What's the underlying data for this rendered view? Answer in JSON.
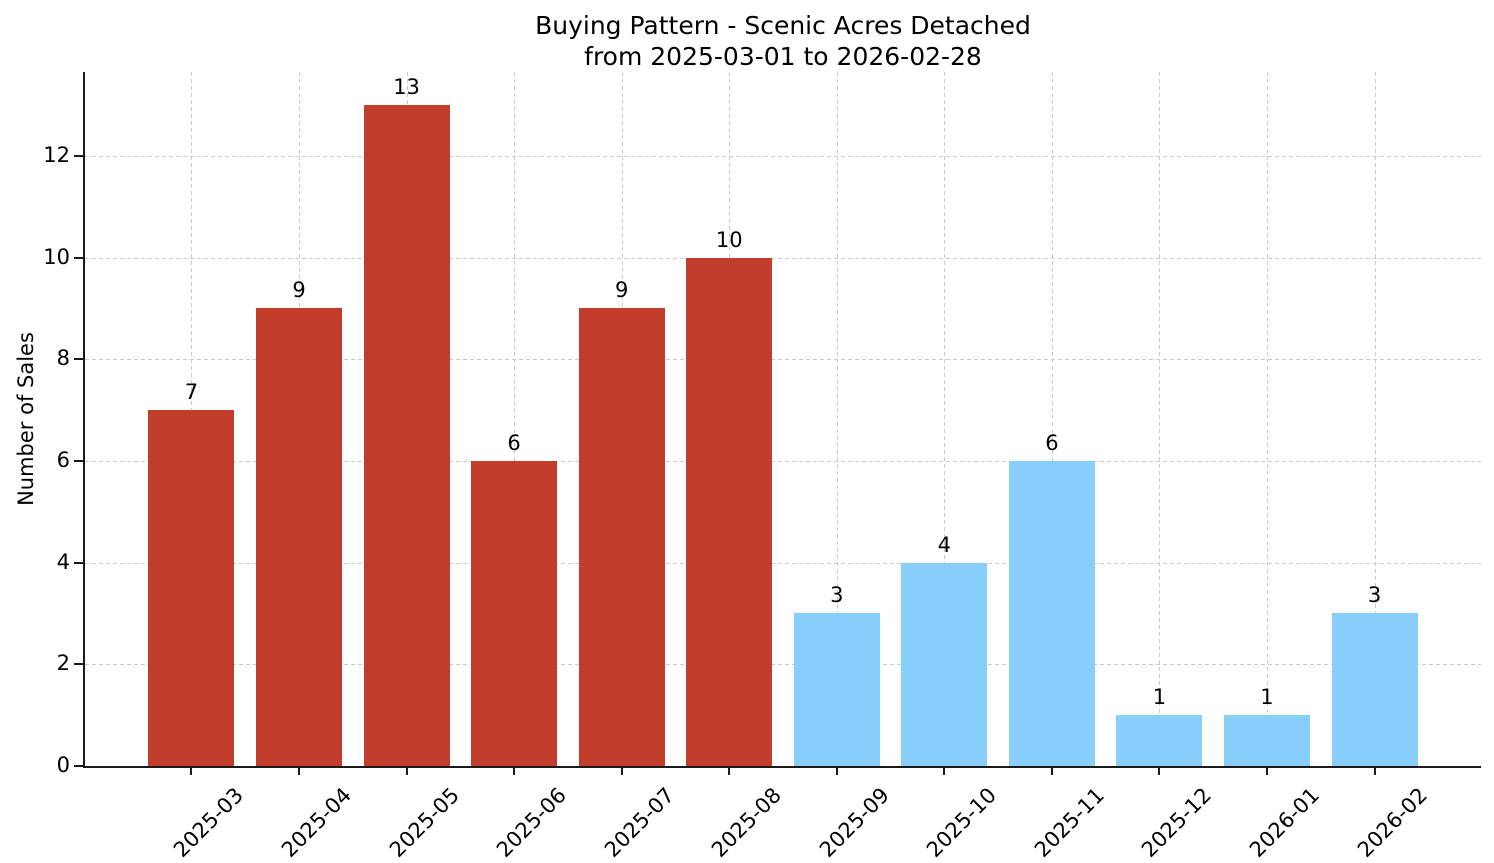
{
  "chart_data": {
    "type": "bar",
    "title": "Buying Pattern - Scenic Acres Detached",
    "subtitle": "from 2025-03-01 to 2026-02-28",
    "ylabel": "Number of Sales",
    "categories": [
      "2025-03",
      "2025-04",
      "2025-05",
      "2025-06",
      "2025-07",
      "2025-08",
      "2025-09",
      "2025-10",
      "2025-11",
      "2025-12",
      "2026-01",
      "2026-02"
    ],
    "values": [
      7,
      9,
      13,
      6,
      9,
      10,
      3,
      4,
      6,
      1,
      1,
      3
    ],
    "bar_colors": [
      "#c33d2b",
      "#c33d2b",
      "#c33d2b",
      "#c33d2b",
      "#c33d2b",
      "#c33d2b",
      "#87cefa",
      "#87cefa",
      "#87cefa",
      "#87cefa",
      "#87cefa",
      "#87cefa"
    ],
    "value_labels": [
      "7",
      "9",
      "13",
      "6",
      "9",
      "10",
      "3",
      "4",
      "6",
      "1",
      "1",
      "3"
    ],
    "yticks": [
      0,
      2,
      4,
      6,
      8,
      10,
      12
    ],
    "ylim": [
      0,
      13.65
    ],
    "grid": true,
    "grid_style": "dashed",
    "legend_position": "none",
    "colors": {
      "historical_bar": "#c33d2b",
      "recent_bar": "#87cefa",
      "grid": "#cbcbcb",
      "axis": "#1a1a1a",
      "text": "#000000",
      "background": "#ffffff"
    }
  }
}
